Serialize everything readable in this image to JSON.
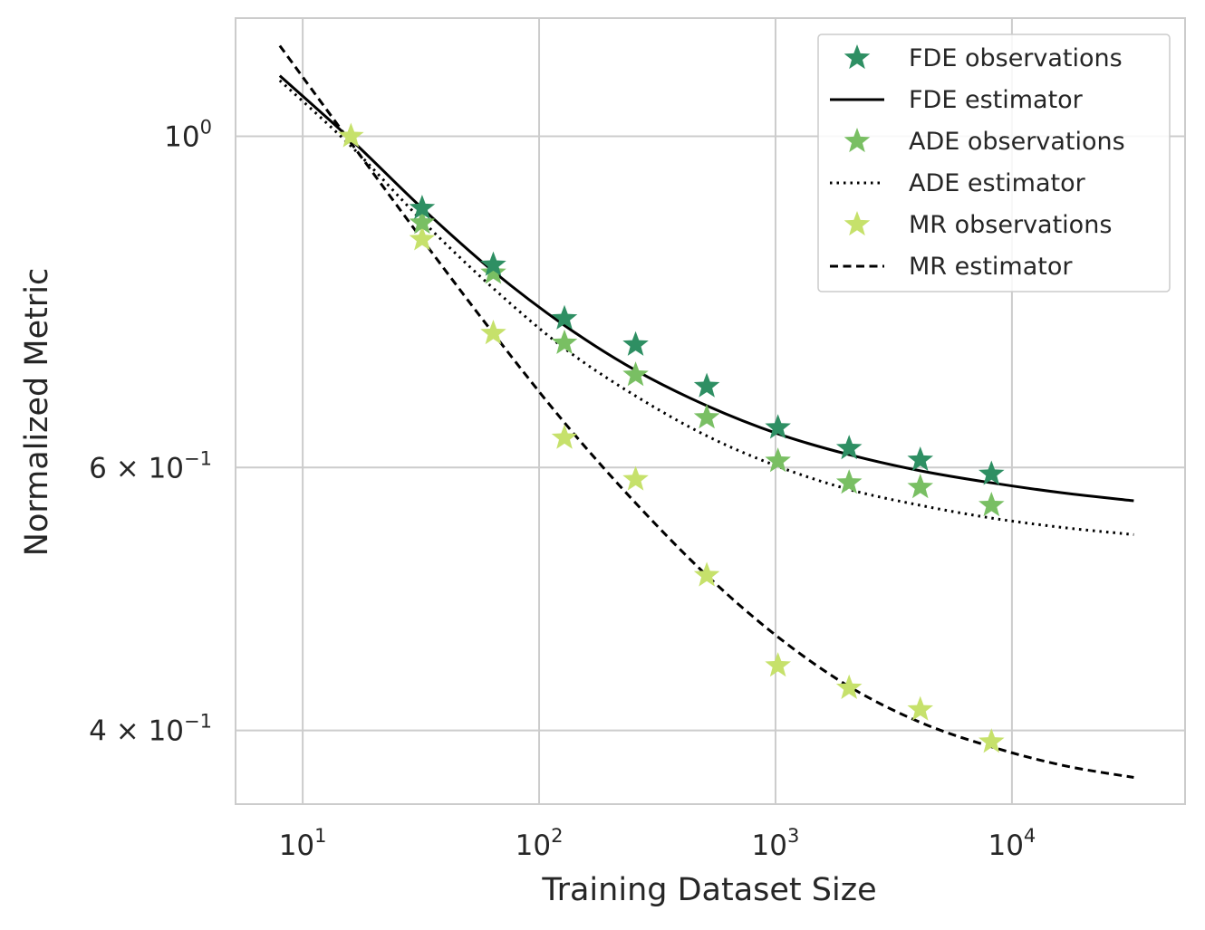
{
  "chart_data": {
    "type": "scatter",
    "xscale": "log",
    "yscale": "log",
    "xlabel": "Training Dataset Size",
    "ylabel": "Normalized Metric",
    "xlim": [
      5.2,
      54000
    ],
    "ylim": [
      0.357,
      1.2
    ],
    "grid": true,
    "legend_position": "top-right",
    "x_ticks": [
      {
        "value": 10,
        "base": "10",
        "exp": "1"
      },
      {
        "value": 100,
        "base": "10",
        "exp": "2"
      },
      {
        "value": 1000,
        "base": "10",
        "exp": "3"
      },
      {
        "value": 10000,
        "base": "10",
        "exp": "4"
      }
    ],
    "y_ticks": [
      {
        "value": 1.0,
        "base": "10",
        "exp": "0"
      },
      {
        "value": 0.6,
        "base": "6 × 10",
        "exp": "−1"
      },
      {
        "value": 0.4,
        "base": "4 × 10",
        "exp": "−1"
      }
    ],
    "observations": [
      {
        "name": "FDE observations",
        "color": "#2e8f63",
        "x": [
          32,
          64,
          128,
          256,
          512,
          1024,
          2048,
          4096,
          8192
        ],
        "y": [
          0.895,
          0.82,
          0.755,
          0.725,
          0.68,
          0.638,
          0.618,
          0.607,
          0.594
        ]
      },
      {
        "name": "ADE observations",
        "color": "#79bf63",
        "x": [
          32,
          64,
          128,
          256,
          512,
          1024,
          2048,
          4096,
          8192
        ],
        "y": [
          0.875,
          0.81,
          0.727,
          0.692,
          0.648,
          0.606,
          0.586,
          0.582,
          0.566
        ]
      },
      {
        "name": "MR observations",
        "color": "#c6e16b",
        "x": [
          16,
          32,
          64,
          128,
          256,
          512,
          1024,
          2048,
          4096,
          8192
        ],
        "y": [
          1.0,
          0.853,
          0.738,
          0.628,
          0.589,
          0.508,
          0.442,
          0.427,
          0.413,
          0.393
        ]
      }
    ],
    "estimators": [
      {
        "name": "FDE estimator",
        "style": "solid",
        "color": "#000000",
        "x": [
          8,
          16,
          32,
          64,
          128,
          256,
          512,
          1024,
          2048,
          4096,
          8192,
          16384,
          32768
        ],
        "y": [
          1.098,
          0.995,
          0.895,
          0.812,
          0.747,
          0.697,
          0.66,
          0.632,
          0.612,
          0.597,
          0.586,
          0.577,
          0.57
        ]
      },
      {
        "name": "ADE estimator",
        "style": "dotted",
        "color": "#000000",
        "x": [
          8,
          16,
          32,
          64,
          128,
          256,
          512,
          1024,
          2048,
          4096,
          8192,
          16384,
          32768
        ],
        "y": [
          1.09,
          0.985,
          0.878,
          0.791,
          0.721,
          0.67,
          0.63,
          0.601,
          0.58,
          0.566,
          0.555,
          0.547,
          0.541
        ]
      },
      {
        "name": "MR estimator",
        "style": "dashed",
        "color": "#000000",
        "x": [
          8,
          16,
          32,
          64,
          128,
          256,
          512,
          1024,
          2048,
          4096,
          8192,
          16384,
          32768
        ],
        "y": [
          1.15,
          0.99,
          0.853,
          0.738,
          0.643,
          0.568,
          0.508,
          0.462,
          0.428,
          0.405,
          0.39,
          0.379,
          0.372
        ]
      }
    ],
    "legend": [
      {
        "label": "FDE observations",
        "kind": "marker",
        "color": "#2e8f63"
      },
      {
        "label": "FDE estimator",
        "kind": "line",
        "style": "solid"
      },
      {
        "label": "ADE observations",
        "kind": "marker",
        "color": "#79bf63"
      },
      {
        "label": "ADE estimator",
        "kind": "line",
        "style": "dotted"
      },
      {
        "label": "MR observations",
        "kind": "marker",
        "color": "#c6e16b"
      },
      {
        "label": "MR estimator",
        "kind": "line",
        "style": "dashed"
      }
    ]
  }
}
